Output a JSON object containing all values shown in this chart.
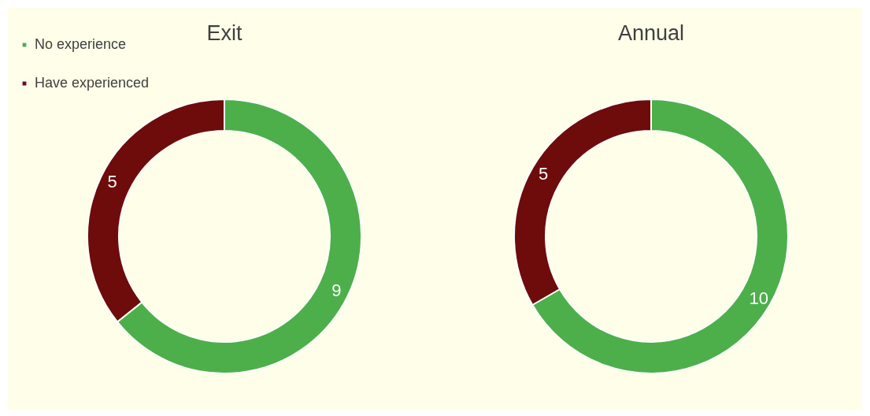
{
  "chart_data": [
    {
      "type": "donut",
      "title": "Exit",
      "categories": [
        "No experience",
        "Have experienced"
      ],
      "values": [
        9,
        5
      ],
      "colors": [
        "#4caf4a",
        "#6e0c0c"
      ],
      "data_labels": true,
      "legend": "top left"
    },
    {
      "type": "donut",
      "title": "Annual",
      "categories": [
        null,
        null
      ],
      "values": [
        10,
        5
      ],
      "colors": [
        "#4caf4a",
        "#6e0c0c"
      ],
      "data_labels": true
    }
  ]
}
